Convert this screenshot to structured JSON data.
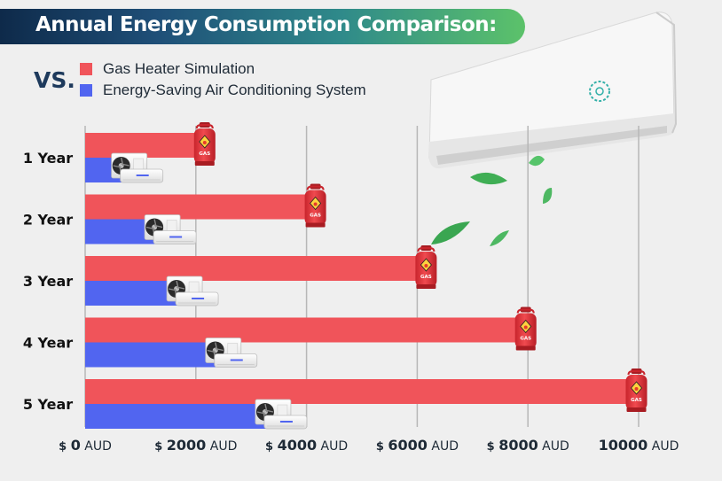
{
  "chart_data": {
    "type": "bar",
    "orientation": "horizontal",
    "title": "Annual Energy Consumption Comparison:",
    "vs_label": "VS.",
    "categories": [
      "1 Year",
      "2 Year",
      "3 Year",
      "4 Year",
      "5 Year"
    ],
    "series": [
      {
        "name": "Gas Heater Simulation",
        "color": "#f0545a",
        "values": [
          2000,
          4000,
          6000,
          7800,
          9800
        ]
      },
      {
        "name": "Energy-Saving Air Conditioning System",
        "color": "#5165f0",
        "values": [
          700,
          1300,
          1700,
          2400,
          3300
        ]
      }
    ],
    "xlim": [
      0,
      10000
    ],
    "xticks": [
      {
        "value": 0,
        "symbol": "$",
        "number": "0",
        "unit": "AUD"
      },
      {
        "value": 2000,
        "symbol": "$",
        "number": "2000",
        "unit": "AUD"
      },
      {
        "value": 4000,
        "symbol": "$",
        "number": "4000",
        "unit": "AUD"
      },
      {
        "value": 6000,
        "symbol": "$",
        "number": "6000",
        "unit": "AUD"
      },
      {
        "value": 8000,
        "symbol": "$",
        "number": "8000",
        "unit": "AUD"
      },
      {
        "value": 10000,
        "symbol": "",
        "number": "10000",
        "unit": "AUD"
      }
    ],
    "grid": "vertical",
    "legend_position": "top-left",
    "gas_icon_label": "GAS",
    "icons": {
      "gas_series": "gas-cylinder-icon",
      "ac_series": "air-conditioner-icon",
      "decoration": "wall-air-conditioner-icon"
    }
  }
}
